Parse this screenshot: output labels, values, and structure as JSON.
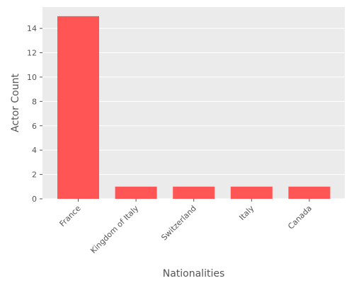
{
  "chart_data": {
    "type": "bar",
    "title": "",
    "xlabel": "Nationalities",
    "ylabel": "Actor Count",
    "categories": [
      "France",
      "Kingdom of Italy",
      "Switzerland",
      "Italy",
      "Canada"
    ],
    "values": [
      15,
      1,
      1,
      1,
      1
    ],
    "ylim": [
      0,
      15.75
    ],
    "yticks": [
      0,
      2,
      4,
      6,
      8,
      10,
      12,
      14
    ],
    "grid": true,
    "legend": "none",
    "colors": {
      "bar": "#ff5555",
      "background": "#ebebeb",
      "grid": "#ffffff",
      "text": "#555555"
    }
  }
}
